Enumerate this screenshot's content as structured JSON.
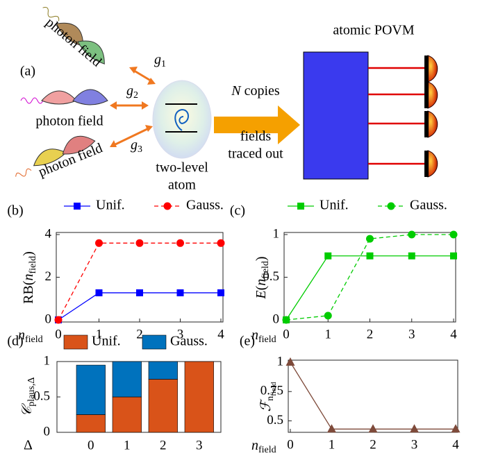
{
  "diagram": {
    "panel": "(a)",
    "photon_fields": [
      "photon field",
      "photon field",
      "photon field"
    ],
    "couplings": [
      {
        "italic": "g",
        "sub": "1"
      },
      {
        "italic": "g",
        "sub": "2"
      },
      {
        "italic": "g",
        "sub": "3"
      }
    ],
    "atom": [
      "two-level",
      "atom"
    ],
    "arrow_label": {
      "italic": "N",
      "roman": " copies"
    },
    "arrow_note": [
      "fields",
      "traced out"
    ],
    "povm": "atomic POVM"
  },
  "chart_data": [
    {
      "type": "line",
      "panel": "(b)",
      "ylabel": {
        "roman": "RB(",
        "italic": "n",
        "sub": "field",
        "roman2": ")"
      },
      "xlabel": {
        "italic": "n",
        "sub": "field"
      },
      "x": [
        0,
        1,
        2,
        3,
        4
      ],
      "xlim": [
        0,
        4
      ],
      "xticks": [
        0,
        1,
        2,
        3,
        4
      ],
      "ylim": [
        0,
        4
      ],
      "yticks": [
        0,
        2,
        4
      ],
      "legend": "top",
      "series": [
        {
          "name": "Unif.",
          "color": "#0000ff",
          "marker": "square",
          "line_style": "solid",
          "values": [
            0,
            1.27,
            1.27,
            1.27,
            1.27
          ]
        },
        {
          "name": "Gauss.",
          "color": "#ff0000",
          "marker": "circle",
          "line_style": "dashed",
          "values": [
            0,
            3.6,
            3.6,
            3.6,
            3.6
          ]
        }
      ]
    },
    {
      "type": "line",
      "panel": "(c)",
      "ylabel": {
        "italic": "E",
        "roman": "(",
        "italic2": "n",
        "sub": "field",
        "roman2": ")"
      },
      "xlabel": {
        "italic": "n",
        "sub": "field"
      },
      "x": [
        0,
        1,
        2,
        3,
        4
      ],
      "xlim": [
        0,
        4
      ],
      "xticks": [
        0,
        1,
        2,
        3,
        4
      ],
      "ylim": [
        0,
        1
      ],
      "yticks": [
        0,
        0.5,
        1
      ],
      "legend": "top",
      "series": [
        {
          "name": "Unif.",
          "color": "#00cc00",
          "marker": "square",
          "line_style": "solid",
          "values": [
            0,
            0.75,
            0.75,
            0.75,
            0.75
          ]
        },
        {
          "name": "Gauss.",
          "color": "#00cc00",
          "marker": "circle",
          "line_style": "dashed",
          "values": [
            0,
            0.05,
            0.95,
            1,
            1
          ]
        }
      ]
    },
    {
      "type": "stacked_bar",
      "panel": "(d)",
      "ylabel": {
        "italic": "𝒞",
        "sub": "plaus,Δ"
      },
      "xlabel": "Δ",
      "categories": [
        "0",
        "1",
        "2",
        "3"
      ],
      "ylim": [
        0,
        1
      ],
      "yticks": [
        0,
        0.5,
        1
      ],
      "legend": "top",
      "series": [
        {
          "name": "Unif.",
          "color": "#d95319",
          "values": [
            0.25,
            0.5,
            0.75,
            1
          ]
        },
        {
          "name": "Gauss.",
          "color": "#0072bd",
          "values": [
            0.7,
            0.5,
            0.25,
            0
          ]
        }
      ]
    },
    {
      "type": "line",
      "panel": "(e)",
      "ylabel": {
        "italic": "ℱ",
        "sub": "n",
        "subsub": "field"
      },
      "xlabel": {
        "italic": "n",
        "sub": "field"
      },
      "x": [
        0,
        1,
        2,
        3,
        4
      ],
      "xlim": [
        0,
        4
      ],
      "xticks": [
        0,
        1,
        2,
        3,
        4
      ],
      "ylim": [
        0.42,
        1
      ],
      "yticks": [
        0.5,
        0.75,
        1
      ],
      "series": [
        {
          "color": "#7e4a3a",
          "marker": "triangle",
          "line_style": "solid",
          "values": [
            1,
            0.43,
            0.43,
            0.43,
            0.43
          ]
        }
      ]
    }
  ]
}
